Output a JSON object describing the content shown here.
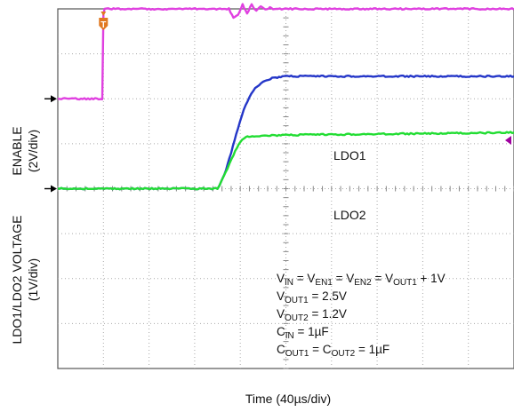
{
  "chart_data": {
    "type": "line",
    "title": "",
    "xlabel": "Time (40µs/div)",
    "ylabels": [
      "ENABLE",
      "(2V/div)",
      "LDO1/LDO2 VOLTAGE",
      "(1V/div)"
    ],
    "grid": true,
    "x_divisions": 10,
    "y_divisions": 8,
    "x_scale_us_per_div": 40,
    "xlim_us": [
      0,
      400
    ],
    "trigger_marker": "T",
    "trigger_time_us": 40,
    "series": [
      {
        "name": "ENABLE",
        "color": "#e040e0",
        "scale_v_per_div": 2,
        "ground_div": 2.0,
        "x_us": [
          0,
          39,
          40,
          41,
          150,
          154,
          158,
          162,
          166,
          170,
          174,
          178,
          182,
          186,
          190,
          400
        ],
        "y_v": [
          0,
          0,
          3.8,
          4.0,
          4.0,
          3.6,
          3.7,
          4.2,
          3.8,
          4.2,
          3.9,
          4.1,
          3.95,
          4.05,
          4.0,
          4.0
        ]
      },
      {
        "name": "LDO1",
        "color": "#2436c8",
        "scale_v_per_div": 1,
        "ground_div": 4.0,
        "x_us": [
          0,
          140,
          146,
          152,
          158,
          163,
          168,
          173,
          180,
          188,
          200,
          220,
          400
        ],
        "y_v": [
          0,
          0,
          0.3,
          0.8,
          1.35,
          1.75,
          2.05,
          2.25,
          2.38,
          2.46,
          2.5,
          2.5,
          2.5
        ]
      },
      {
        "name": "LDO2",
        "color": "#22dd33",
        "scale_v_per_div": 1,
        "ground_div": 4.0,
        "x_us": [
          0,
          140,
          147,
          154,
          160,
          165,
          169,
          180,
          220,
          300,
          400
        ],
        "y_v": [
          0,
          0,
          0.35,
          0.75,
          1.05,
          1.15,
          1.17,
          1.18,
          1.2,
          1.22,
          1.25
        ]
      }
    ],
    "annotations": {
      "ldo1": "LDO1",
      "ldo2": "LDO2",
      "conditions": [
        {
          "parts": [
            "V",
            "IN",
            " = V",
            "EN1",
            " = V",
            "EN2",
            " = V",
            "OUT1",
            " + 1V"
          ]
        },
        {
          "parts": [
            "V",
            "OUT1",
            " = 2.5V"
          ]
        },
        {
          "parts": [
            "V",
            "OUT2",
            " = 1.2V"
          ]
        },
        {
          "parts": [
            "C",
            "IN",
            " = 1µF"
          ]
        },
        {
          "parts": [
            "C",
            "OUT1",
            " = C",
            "OUT2",
            " = 1µF"
          ]
        }
      ]
    }
  }
}
